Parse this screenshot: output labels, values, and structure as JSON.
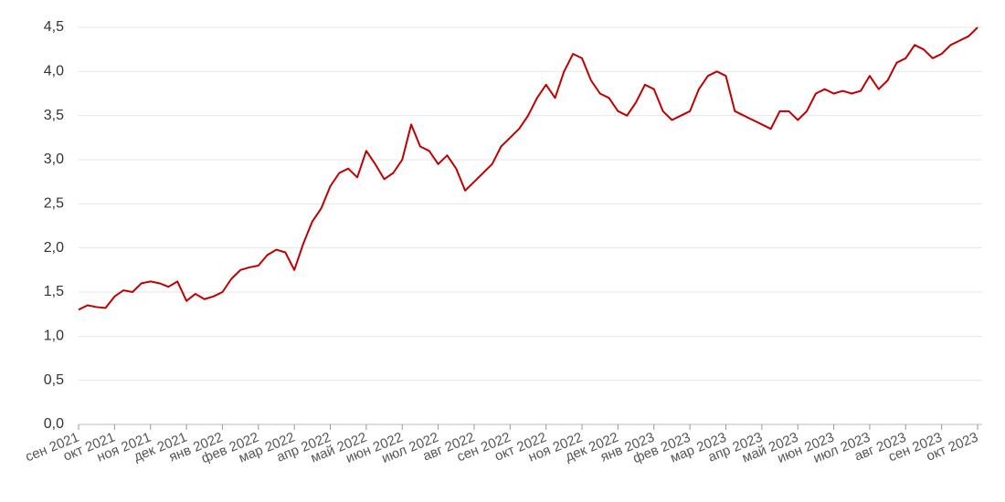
{
  "chart_data": {
    "type": "line",
    "categories": [
      "сен 2021",
      null,
      null,
      null,
      "окт 2021",
      null,
      null,
      null,
      "ноя 2021",
      null,
      null,
      null,
      "дек 2021",
      null,
      null,
      null,
      "янв 2022",
      null,
      null,
      null,
      "фев 2022",
      null,
      null,
      null,
      "мар 2022",
      null,
      null,
      null,
      "апр 2022",
      null,
      null,
      null,
      "май 2022",
      null,
      null,
      null,
      "июн 2022",
      null,
      null,
      null,
      "июл 2022",
      null,
      null,
      null,
      "авг 2022",
      null,
      null,
      null,
      "сен 2022",
      null,
      null,
      null,
      "окт 2022",
      null,
      null,
      null,
      "ноя 2022",
      null,
      null,
      null,
      "дек 2022",
      null,
      null,
      null,
      "янв 2023",
      null,
      null,
      null,
      "фев 2023",
      null,
      null,
      null,
      "мар 2023",
      null,
      null,
      null,
      "апр 2023",
      null,
      null,
      null,
      "май 2023",
      null,
      null,
      null,
      "июн 2023",
      null,
      null,
      null,
      "июл 2023",
      null,
      null,
      null,
      "авг 2023",
      null,
      null,
      null,
      "сен 2023",
      null,
      null,
      null,
      "окт 2023"
    ],
    "values": [
      1.3,
      1.35,
      1.33,
      1.32,
      1.45,
      1.52,
      1.5,
      1.6,
      1.62,
      1.6,
      1.56,
      1.62,
      1.4,
      1.48,
      1.42,
      1.45,
      1.5,
      1.65,
      1.75,
      1.78,
      1.8,
      1.92,
      1.98,
      1.95,
      1.75,
      2.05,
      2.3,
      2.45,
      2.7,
      2.85,
      2.9,
      2.8,
      3.1,
      2.95,
      2.78,
      2.85,
      3.0,
      3.4,
      3.15,
      3.1,
      2.95,
      3.05,
      2.9,
      2.65,
      2.75,
      2.85,
      2.95,
      3.15,
      3.25,
      3.35,
      3.5,
      3.7,
      3.85,
      3.7,
      4.0,
      4.2,
      4.15,
      3.9,
      3.75,
      3.7,
      3.55,
      3.5,
      3.65,
      3.85,
      3.8,
      3.55,
      3.45,
      3.5,
      3.55,
      3.8,
      3.95,
      4.0,
      3.95,
      3.55,
      3.5,
      3.45,
      3.4,
      3.35,
      3.55,
      3.55,
      3.45,
      3.55,
      3.75,
      3.8,
      3.75,
      3.78,
      3.75,
      3.78,
      3.95,
      3.8,
      3.9,
      4.1,
      4.15,
      4.3,
      4.25,
      4.15,
      4.2,
      4.3,
      4.35,
      4.4,
      4.5
    ],
    "color": "#c00000",
    "ylim": [
      0,
      4.5
    ],
    "yticks": [
      {
        "value": 0,
        "label": "0,0"
      },
      {
        "value": 0.5,
        "label": "0,5"
      },
      {
        "value": 1,
        "label": "1,0"
      },
      {
        "value": 1.5,
        "label": "1,5"
      },
      {
        "value": 2,
        "label": "2,0"
      },
      {
        "value": 2.5,
        "label": "2,5"
      },
      {
        "value": 3,
        "label": "3,0"
      },
      {
        "value": 3.5,
        "label": "3,5"
      },
      {
        "value": 4,
        "label": "4,0"
      },
      {
        "value": 4.5,
        "label": "4,5"
      }
    ],
    "grid": true
  }
}
